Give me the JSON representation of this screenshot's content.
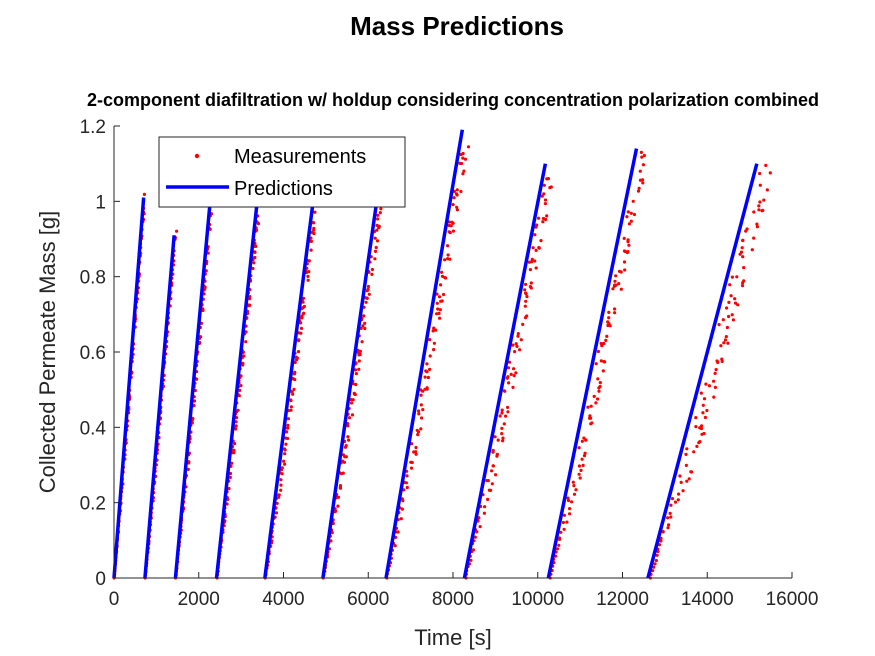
{
  "chart_data": {
    "type": "line",
    "figure_title": "Mass Predictions",
    "title": "2-component diafiltration w/ holdup considering concentration polarization combined",
    "xlabel": "Time [s]",
    "ylabel": "Collected Permeate Mass [g]",
    "xlim": [
      0,
      16000
    ],
    "ylim": [
      0,
      1.2
    ],
    "xticks": [
      0,
      2000,
      4000,
      6000,
      8000,
      10000,
      12000,
      14000,
      16000
    ],
    "xtick_labels": [
      "0",
      "2000",
      "4000",
      "6000",
      "8000",
      "10000",
      "12000",
      "14000",
      "16000"
    ],
    "yticks": [
      0,
      0.2,
      0.4,
      0.6,
      0.8,
      1,
      1.2
    ],
    "ytick_labels": [
      "0",
      "0.2",
      "0.4",
      "0.6",
      "0.8",
      "1",
      "1.2"
    ],
    "legend": {
      "location": "top-left",
      "entries": [
        "Measurements",
        "Predictions"
      ]
    },
    "colors": {
      "measurements": "#ff0000",
      "predictions": "#0000ff"
    },
    "segments": [
      {
        "t_start": 0,
        "t_end": 700,
        "mass_end": 1.01
      },
      {
        "t_start": 730,
        "t_end": 1420,
        "mass_end": 0.91
      },
      {
        "t_start": 1450,
        "t_end": 2270,
        "mass_end": 1.0
      },
      {
        "t_start": 2420,
        "t_end": 3380,
        "mass_end": 1.0
      },
      {
        "t_start": 3560,
        "t_end": 4700,
        "mass_end": 1.0
      },
      {
        "t_start": 4930,
        "t_end": 6200,
        "mass_end": 1.0
      },
      {
        "t_start": 6420,
        "t_end": 8220,
        "mass_end": 1.19
      },
      {
        "t_start": 8270,
        "t_end": 10180,
        "mass_end": 1.1
      },
      {
        "t_start": 10250,
        "t_end": 12330,
        "mass_end": 1.14
      },
      {
        "t_start": 12600,
        "t_end": 15170,
        "mass_end": 1.1
      }
    ],
    "series": [
      {
        "name": "Measurements",
        "style": "red dots",
        "description": "scattered measured permeate mass, lagging the predicted ramps by ~0-0.1 g"
      },
      {
        "name": "Predictions",
        "style": "solid blue line",
        "description": "piecewise linear ramps from 0 to each segment end mass"
      }
    ]
  }
}
